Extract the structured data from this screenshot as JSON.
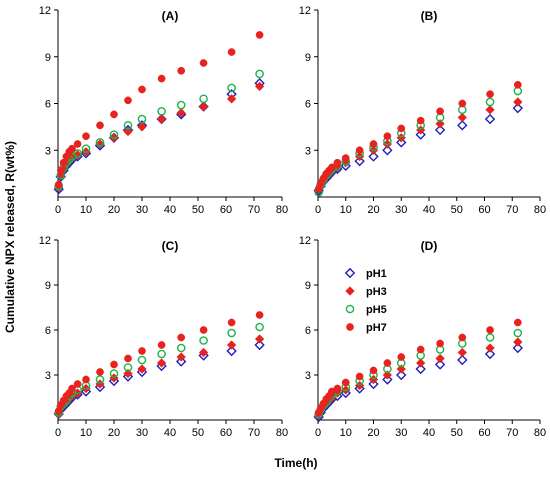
{
  "ylabel": "Cumulative NPX released, R(wt%)",
  "xlabel": "Time(h)",
  "legend": {
    "placement": "panel D, upper middle",
    "items": [
      {
        "name": "pH1",
        "marker": "diamond-open",
        "color": "#1f1fbf"
      },
      {
        "name": "pH3",
        "marker": "diamond-filled",
        "color": "#e8221f"
      },
      {
        "name": "pH5",
        "marker": "circle-open",
        "color": "#19b34c"
      },
      {
        "name": "pH7",
        "marker": "circle-filled",
        "color": "#e8221f"
      }
    ]
  },
  "chart_data": [
    {
      "type": "scatter",
      "panel": "(A)",
      "xlim": [
        0,
        80
      ],
      "ylim": [
        0,
        12
      ],
      "xticks": [
        "0",
        "10",
        "20",
        "30",
        "40",
        "50",
        "60",
        "70",
        "80"
      ],
      "yticks": [
        "3",
        "6",
        "9",
        "12"
      ],
      "x": [
        0.25,
        1,
        2,
        3,
        4,
        5,
        7,
        10,
        15,
        20,
        25,
        30,
        37,
        44,
        52,
        62,
        72
      ],
      "series": [
        {
          "name": "pH1",
          "values": [
            0.5,
            1.3,
            1.7,
            2.0,
            2.2,
            2.4,
            2.6,
            2.8,
            3.3,
            3.8,
            4.3,
            4.6,
            5.0,
            5.3,
            5.8,
            6.6,
            7.3
          ]
        },
        {
          "name": "pH3",
          "values": [
            0.6,
            1.4,
            1.8,
            2.1,
            2.3,
            2.5,
            2.7,
            2.9,
            3.4,
            3.8,
            4.2,
            4.5,
            5.0,
            5.4,
            5.8,
            6.3,
            7.1
          ]
        },
        {
          "name": "pH5",
          "values": [
            0.7,
            1.4,
            1.9,
            2.2,
            2.4,
            2.6,
            2.8,
            3.1,
            3.5,
            4.0,
            4.6,
            5.0,
            5.5,
            5.9,
            6.3,
            7.0,
            7.9
          ]
        },
        {
          "name": "pH7",
          "values": [
            0.8,
            1.7,
            2.2,
            2.6,
            2.9,
            3.1,
            3.4,
            3.9,
            4.6,
            5.3,
            6.2,
            6.9,
            7.6,
            8.1,
            8.6,
            9.3,
            10.4
          ]
        }
      ]
    },
    {
      "type": "scatter",
      "panel": "(B)",
      "xlim": [
        0,
        80
      ],
      "ylim": [
        0,
        12
      ],
      "xticks": [
        "0",
        "10",
        "20",
        "30",
        "40",
        "50",
        "60",
        "70",
        "80"
      ],
      "yticks": [
        "3",
        "6",
        "9",
        "12"
      ],
      "x": [
        0.25,
        1,
        2,
        3,
        4,
        5,
        7,
        10,
        15,
        20,
        25,
        30,
        37,
        44,
        52,
        62,
        72
      ],
      "series": [
        {
          "name": "pH1",
          "values": [
            0.4,
            0.7,
            1.0,
            1.2,
            1.4,
            1.6,
            1.8,
            2.0,
            2.3,
            2.6,
            3.0,
            3.5,
            4.0,
            4.3,
            4.6,
            5.0,
            5.7
          ]
        },
        {
          "name": "pH3",
          "values": [
            0.5,
            0.8,
            1.1,
            1.3,
            1.5,
            1.7,
            1.9,
            2.2,
            2.6,
            3.0,
            3.4,
            3.8,
            4.3,
            4.7,
            5.1,
            5.6,
            6.1
          ]
        },
        {
          "name": "pH5",
          "values": [
            0.3,
            0.8,
            1.1,
            1.4,
            1.6,
            1.8,
            2.0,
            2.3,
            2.8,
            3.2,
            3.6,
            4.1,
            4.6,
            5.1,
            5.6,
            6.1,
            6.8
          ]
        },
        {
          "name": "pH7",
          "values": [
            0.5,
            0.9,
            1.2,
            1.5,
            1.7,
            1.9,
            2.2,
            2.5,
            3.0,
            3.4,
            3.9,
            4.4,
            4.9,
            5.5,
            6.0,
            6.6,
            7.2
          ]
        }
      ]
    },
    {
      "type": "scatter",
      "panel": "(C)",
      "xlim": [
        0,
        80
      ],
      "ylim": [
        0,
        12
      ],
      "xticks": [
        "0",
        "10",
        "20",
        "30",
        "40",
        "50",
        "60",
        "70",
        "80"
      ],
      "yticks": [
        "3",
        "6",
        "9",
        "12"
      ],
      "x": [
        0.25,
        1,
        2,
        3,
        4,
        5,
        7,
        10,
        15,
        20,
        25,
        30,
        37,
        44,
        52,
        62,
        72
      ],
      "series": [
        {
          "name": "pH1",
          "values": [
            0.4,
            0.7,
            0.9,
            1.1,
            1.3,
            1.5,
            1.7,
            1.9,
            2.2,
            2.6,
            2.9,
            3.2,
            3.6,
            3.9,
            4.3,
            4.6,
            5.0
          ]
        },
        {
          "name": "pH3",
          "values": [
            0.4,
            0.8,
            1.0,
            1.2,
            1.4,
            1.6,
            1.8,
            2.1,
            2.4,
            2.8,
            3.1,
            3.4,
            3.8,
            4.2,
            4.5,
            5.0,
            5.4
          ]
        },
        {
          "name": "pH5",
          "values": [
            0.5,
            0.9,
            1.1,
            1.3,
            1.6,
            1.8,
            2.0,
            2.3,
            2.7,
            3.1,
            3.5,
            4.0,
            4.4,
            4.8,
            5.3,
            5.8,
            6.2
          ]
        },
        {
          "name": "pH7",
          "values": [
            0.6,
            1.0,
            1.3,
            1.6,
            1.8,
            2.1,
            2.4,
            2.7,
            3.2,
            3.7,
            4.1,
            4.6,
            5.0,
            5.5,
            6.0,
            6.5,
            7.0
          ]
        }
      ]
    },
    {
      "type": "scatter",
      "panel": "(D)",
      "xlim": [
        0,
        80
      ],
      "ylim": [
        0,
        12
      ],
      "xticks": [
        "0",
        "10",
        "20",
        "30",
        "40",
        "50",
        "60",
        "70",
        "80"
      ],
      "yticks": [
        "3",
        "6",
        "9",
        "12"
      ],
      "x": [
        0.25,
        1,
        2,
        3,
        4,
        5,
        7,
        10,
        15,
        20,
        25,
        30,
        37,
        44,
        52,
        62,
        72
      ],
      "series": [
        {
          "name": "pH1",
          "values": [
            0.2,
            0.5,
            0.8,
            1.0,
            1.2,
            1.4,
            1.6,
            1.8,
            2.1,
            2.4,
            2.7,
            3.0,
            3.4,
            3.7,
            4.0,
            4.4,
            4.8
          ]
        },
        {
          "name": "pH3",
          "values": [
            0.3,
            0.6,
            0.9,
            1.1,
            1.3,
            1.5,
            1.8,
            2.0,
            2.3,
            2.7,
            3.0,
            3.4,
            3.8,
            4.1,
            4.5,
            4.8,
            5.2
          ]
        },
        {
          "name": "pH5",
          "values": [
            0.4,
            0.7,
            1.0,
            1.2,
            1.5,
            1.7,
            1.9,
            2.2,
            2.6,
            3.0,
            3.4,
            3.8,
            4.3,
            4.7,
            5.1,
            5.5,
            5.8
          ]
        },
        {
          "name": "pH7",
          "values": [
            0.5,
            0.8,
            1.1,
            1.4,
            1.6,
            1.9,
            2.1,
            2.5,
            2.9,
            3.3,
            3.8,
            4.2,
            4.7,
            5.1,
            5.5,
            6.0,
            6.5
          ]
        }
      ]
    }
  ]
}
